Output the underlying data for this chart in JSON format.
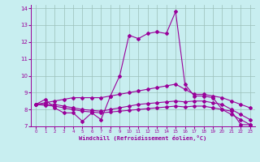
{
  "xlabel": "Windchill (Refroidissement éolien,°C)",
  "xlim": [
    -0.5,
    23.5
  ],
  "ylim": [
    7,
    14.2
  ],
  "yticks": [
    7,
    8,
    9,
    10,
    11,
    12,
    13,
    14
  ],
  "xticks": [
    0,
    1,
    2,
    3,
    4,
    5,
    6,
    7,
    8,
    9,
    10,
    11,
    12,
    13,
    14,
    15,
    16,
    17,
    18,
    19,
    20,
    21,
    22,
    23
  ],
  "bg_color": "#c8eef0",
  "line_color": "#990099",
  "grid_color": "#aaddcc",
  "series": {
    "main": {
      "x": [
        0,
        1,
        2,
        3,
        4,
        5,
        6,
        7,
        8,
        9,
        10,
        11,
        12,
        13,
        14,
        15,
        16,
        17,
        18,
        19,
        20,
        21,
        22,
        23
      ],
      "y": [
        8.3,
        8.6,
        8.1,
        7.8,
        7.8,
        7.3,
        7.8,
        7.4,
        8.8,
        10.0,
        12.4,
        12.2,
        12.5,
        12.6,
        12.5,
        13.8,
        9.5,
        8.8,
        8.8,
        8.7,
        8.0,
        7.9,
        7.1,
        7.1
      ]
    },
    "line1": {
      "x": [
        0,
        1,
        2,
        3,
        4,
        5,
        6,
        7,
        8,
        9,
        10,
        11,
        12,
        13,
        14,
        15,
        16,
        17,
        18,
        19,
        20,
        21,
        22,
        23
      ],
      "y": [
        8.3,
        8.4,
        8.5,
        8.6,
        8.7,
        8.7,
        8.7,
        8.7,
        8.8,
        8.9,
        9.0,
        9.1,
        9.2,
        9.3,
        9.4,
        9.5,
        9.2,
        8.9,
        8.9,
        8.8,
        8.7,
        8.5,
        8.3,
        8.1
      ]
    },
    "line2": {
      "x": [
        0,
        1,
        2,
        3,
        4,
        5,
        6,
        7,
        8,
        9,
        10,
        11,
        12,
        13,
        14,
        15,
        16,
        17,
        18,
        19,
        20,
        21,
        22,
        23
      ],
      "y": [
        8.3,
        8.3,
        8.3,
        8.2,
        8.1,
        8.0,
        7.95,
        7.9,
        8.0,
        8.1,
        8.2,
        8.3,
        8.35,
        8.4,
        8.45,
        8.5,
        8.45,
        8.5,
        8.5,
        8.4,
        8.3,
        8.0,
        7.7,
        7.4
      ]
    },
    "line3": {
      "x": [
        0,
        1,
        2,
        3,
        4,
        5,
        6,
        7,
        8,
        9,
        10,
        11,
        12,
        13,
        14,
        15,
        16,
        17,
        18,
        19,
        20,
        21,
        22,
        23
      ],
      "y": [
        8.3,
        8.25,
        8.2,
        8.1,
        8.0,
        7.9,
        7.85,
        7.8,
        7.85,
        7.9,
        7.95,
        8.0,
        8.05,
        8.1,
        8.15,
        8.2,
        8.15,
        8.2,
        8.2,
        8.1,
        8.0,
        7.7,
        7.4,
        7.1
      ]
    }
  }
}
